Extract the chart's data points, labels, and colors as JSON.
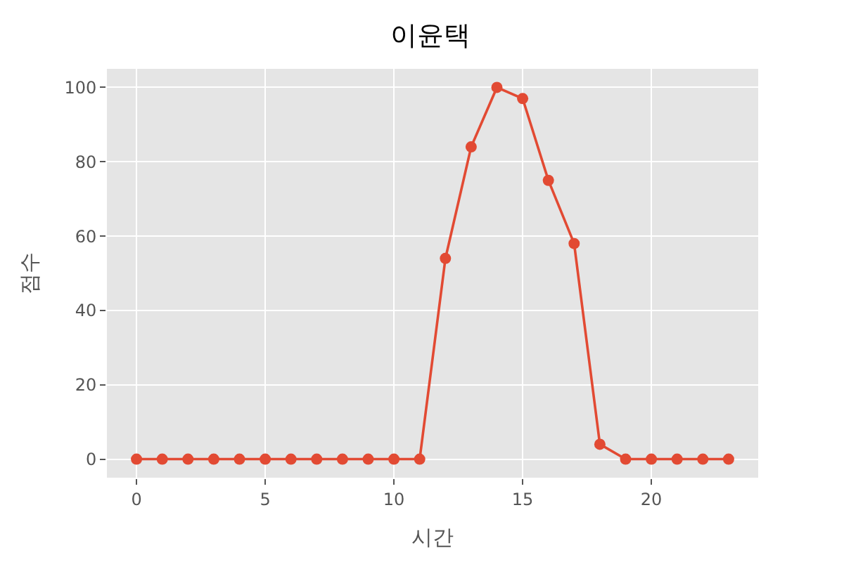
{
  "chart_data": {
    "type": "line",
    "title": "이윤택",
    "xlabel": "시간",
    "ylabel": "점수",
    "x": [
      0,
      1,
      2,
      3,
      4,
      5,
      6,
      7,
      8,
      9,
      10,
      11,
      12,
      13,
      14,
      15,
      16,
      17,
      18,
      19,
      20,
      21,
      22,
      23
    ],
    "series": [
      {
        "color": "#e24a33",
        "values": [
          0,
          0,
          0,
          0,
          0,
          0,
          0,
          0,
          0,
          0,
          0,
          0,
          54,
          84,
          100,
          97,
          75,
          58,
          4,
          0,
          0,
          0,
          0,
          0
        ]
      }
    ],
    "xlim": [
      -1.15,
      24.15
    ],
    "xticks": [
      0,
      5,
      10,
      15,
      20
    ],
    "ylim": [
      -5,
      105
    ],
    "yticks": [
      0,
      20,
      40,
      60,
      80,
      100
    ],
    "grid": true,
    "marker": "circle",
    "line_style": "solid"
  }
}
